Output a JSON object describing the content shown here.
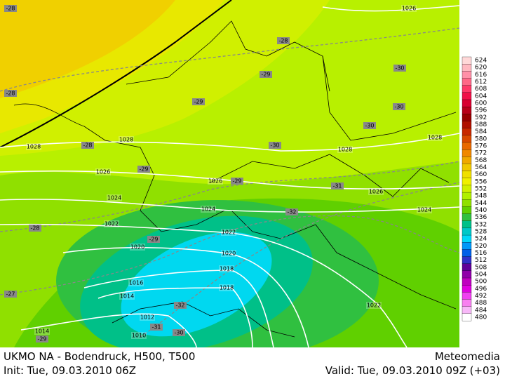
{
  "footer": {
    "title": "UKMO NA - Bodendruck, H500, T500",
    "brand": "Meteomedia",
    "init": "Init: Tue, 09.03.2010 06Z",
    "valid": "Valid: Tue, 09.03.2010 09Z (+03)"
  },
  "colorbar": {
    "values": [
      624,
      620,
      616,
      612,
      608,
      604,
      600,
      596,
      592,
      588,
      584,
      580,
      576,
      572,
      568,
      564,
      560,
      556,
      552,
      548,
      544,
      540,
      536,
      532,
      528,
      524,
      520,
      516,
      512,
      508,
      504,
      500,
      496,
      492,
      488,
      484,
      480
    ],
    "colors": [
      "#ffd8d8",
      "#ffb8c0",
      "#ff90a8",
      "#ff6888",
      "#ff3868",
      "#f01048",
      "#d80030",
      "#b80018",
      "#980000",
      "#b01000",
      "#c82800",
      "#d84800",
      "#e86800",
      "#f08800",
      "#f0a800",
      "#f0c800",
      "#f0e000",
      "#f0f000",
      "#d0f000",
      "#b0f000",
      "#90e000",
      "#60d000",
      "#30c040",
      "#00c088",
      "#00c8c8",
      "#00d8f8",
      "#0098f8",
      "#0060e8",
      "#3030c8",
      "#600098",
      "#9000a8",
      "#c000c0",
      "#e000e0",
      "#f040f0",
      "#f880f0",
      "#f8b8f8",
      "#ffffff"
    ]
  },
  "isobar_labels": [
    "1026",
    "1028",
    "1028",
    "1028",
    "1028",
    "1026",
    "1026",
    "1026",
    "1024",
    "1024",
    "1024",
    "1022",
    "1022",
    "1020",
    "1020",
    "1018",
    "1018",
    "1016",
    "1014",
    "1012",
    "1014",
    "1010",
    "1022"
  ],
  "temperature_labels": [
    "-28",
    "-28",
    "-29",
    "-30",
    "-28",
    "-29",
    "-30",
    "-30",
    "-28",
    "-30",
    "-29",
    "-29",
    "-31",
    "-32",
    "-28",
    "-29",
    "-27",
    "-32",
    "-31",
    "-30",
    "-29"
  ]
}
